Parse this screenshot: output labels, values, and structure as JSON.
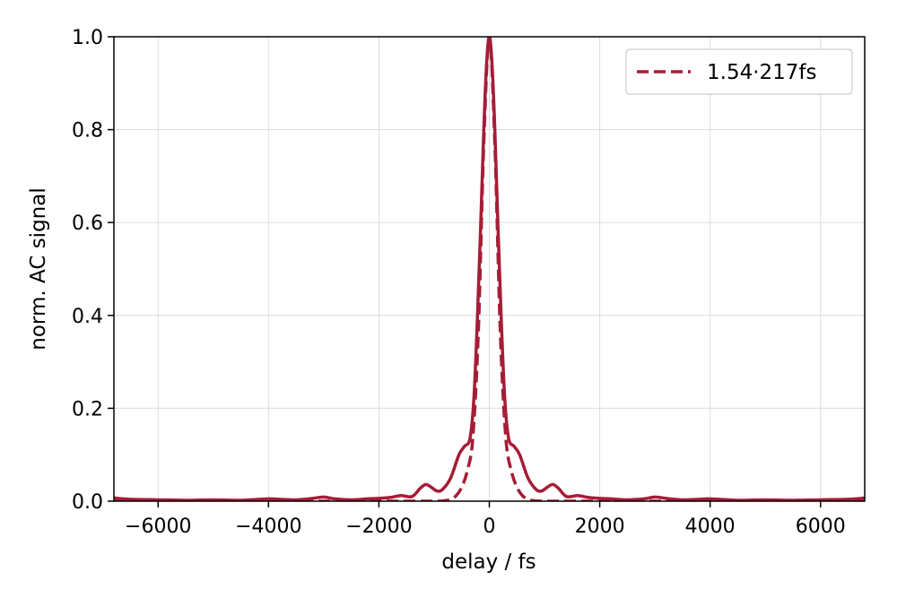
{
  "chart_data": {
    "type": "line",
    "title": "",
    "xlabel": "delay / fs",
    "ylabel": "norm. AC signal",
    "xlim": [
      -6800,
      6800
    ],
    "ylim": [
      0,
      1.0
    ],
    "xticks": [
      -6000,
      -4000,
      -2000,
      0,
      2000,
      4000,
      6000
    ],
    "xtick_labels": [
      "−6000",
      "−4000",
      "−2000",
      "0",
      "2000",
      "4000",
      "6000"
    ],
    "yticks": [
      0.0,
      0.2,
      0.4,
      0.6,
      0.8,
      1.0
    ],
    "ytick_labels": [
      "0.0",
      "0.2",
      "0.4",
      "0.6",
      "0.8",
      "1.0"
    ],
    "grid": true,
    "legend_position": "upper right",
    "color": "#a51d36",
    "series": [
      {
        "name": "",
        "style": "solid",
        "x": [
          -6800,
          -6500,
          -6000,
          -5500,
          -5000,
          -4500,
          -4000,
          -3800,
          -3500,
          -3200,
          -3000,
          -2800,
          -2500,
          -2200,
          -2000,
          -1800,
          -1600,
          -1400,
          -1250,
          -1150,
          -1050,
          -950,
          -850,
          -700,
          -550,
          -450,
          -350,
          -280,
          -220,
          -160,
          -100,
          -50,
          0,
          50,
          100,
          160,
          220,
          280,
          350,
          450,
          550,
          700,
          850,
          950,
          1050,
          1150,
          1250,
          1400,
          1600,
          1800,
          2000,
          2200,
          2500,
          2800,
          3000,
          3200,
          3500,
          3800,
          4000,
          4500,
          5000,
          5500,
          6000,
          6500,
          6800
        ],
        "y": [
          0.007,
          0.004,
          0.003,
          0.002,
          0.003,
          0.002,
          0.005,
          0.004,
          0.003,
          0.006,
          0.009,
          0.005,
          0.003,
          0.005,
          0.006,
          0.008,
          0.012,
          0.01,
          0.028,
          0.036,
          0.03,
          0.022,
          0.025,
          0.05,
          0.1,
          0.118,
          0.135,
          0.22,
          0.38,
          0.58,
          0.8,
          0.94,
          1.0,
          0.94,
          0.8,
          0.58,
          0.38,
          0.22,
          0.135,
          0.118,
          0.1,
          0.05,
          0.025,
          0.022,
          0.03,
          0.036,
          0.028,
          0.01,
          0.012,
          0.008,
          0.006,
          0.005,
          0.003,
          0.005,
          0.009,
          0.006,
          0.003,
          0.004,
          0.005,
          0.002,
          0.003,
          0.002,
          0.003,
          0.004,
          0.007
        ]
      },
      {
        "name": "1.54·217fs",
        "style": "dashed",
        "x": [
          -6800,
          -2000,
          -1000,
          -800,
          -700,
          -600,
          -500,
          -400,
          -300,
          -200,
          -100,
          0,
          100,
          200,
          300,
          400,
          500,
          600,
          700,
          800,
          1000,
          2000,
          6800
        ],
        "y": [
          0,
          0,
          0.0001,
          0.0013,
          0.004,
          0.012,
          0.03,
          0.065,
          0.135,
          0.36,
          0.77,
          1.0,
          0.77,
          0.36,
          0.135,
          0.065,
          0.03,
          0.012,
          0.004,
          0.0013,
          0.0001,
          0,
          0
        ]
      }
    ]
  }
}
